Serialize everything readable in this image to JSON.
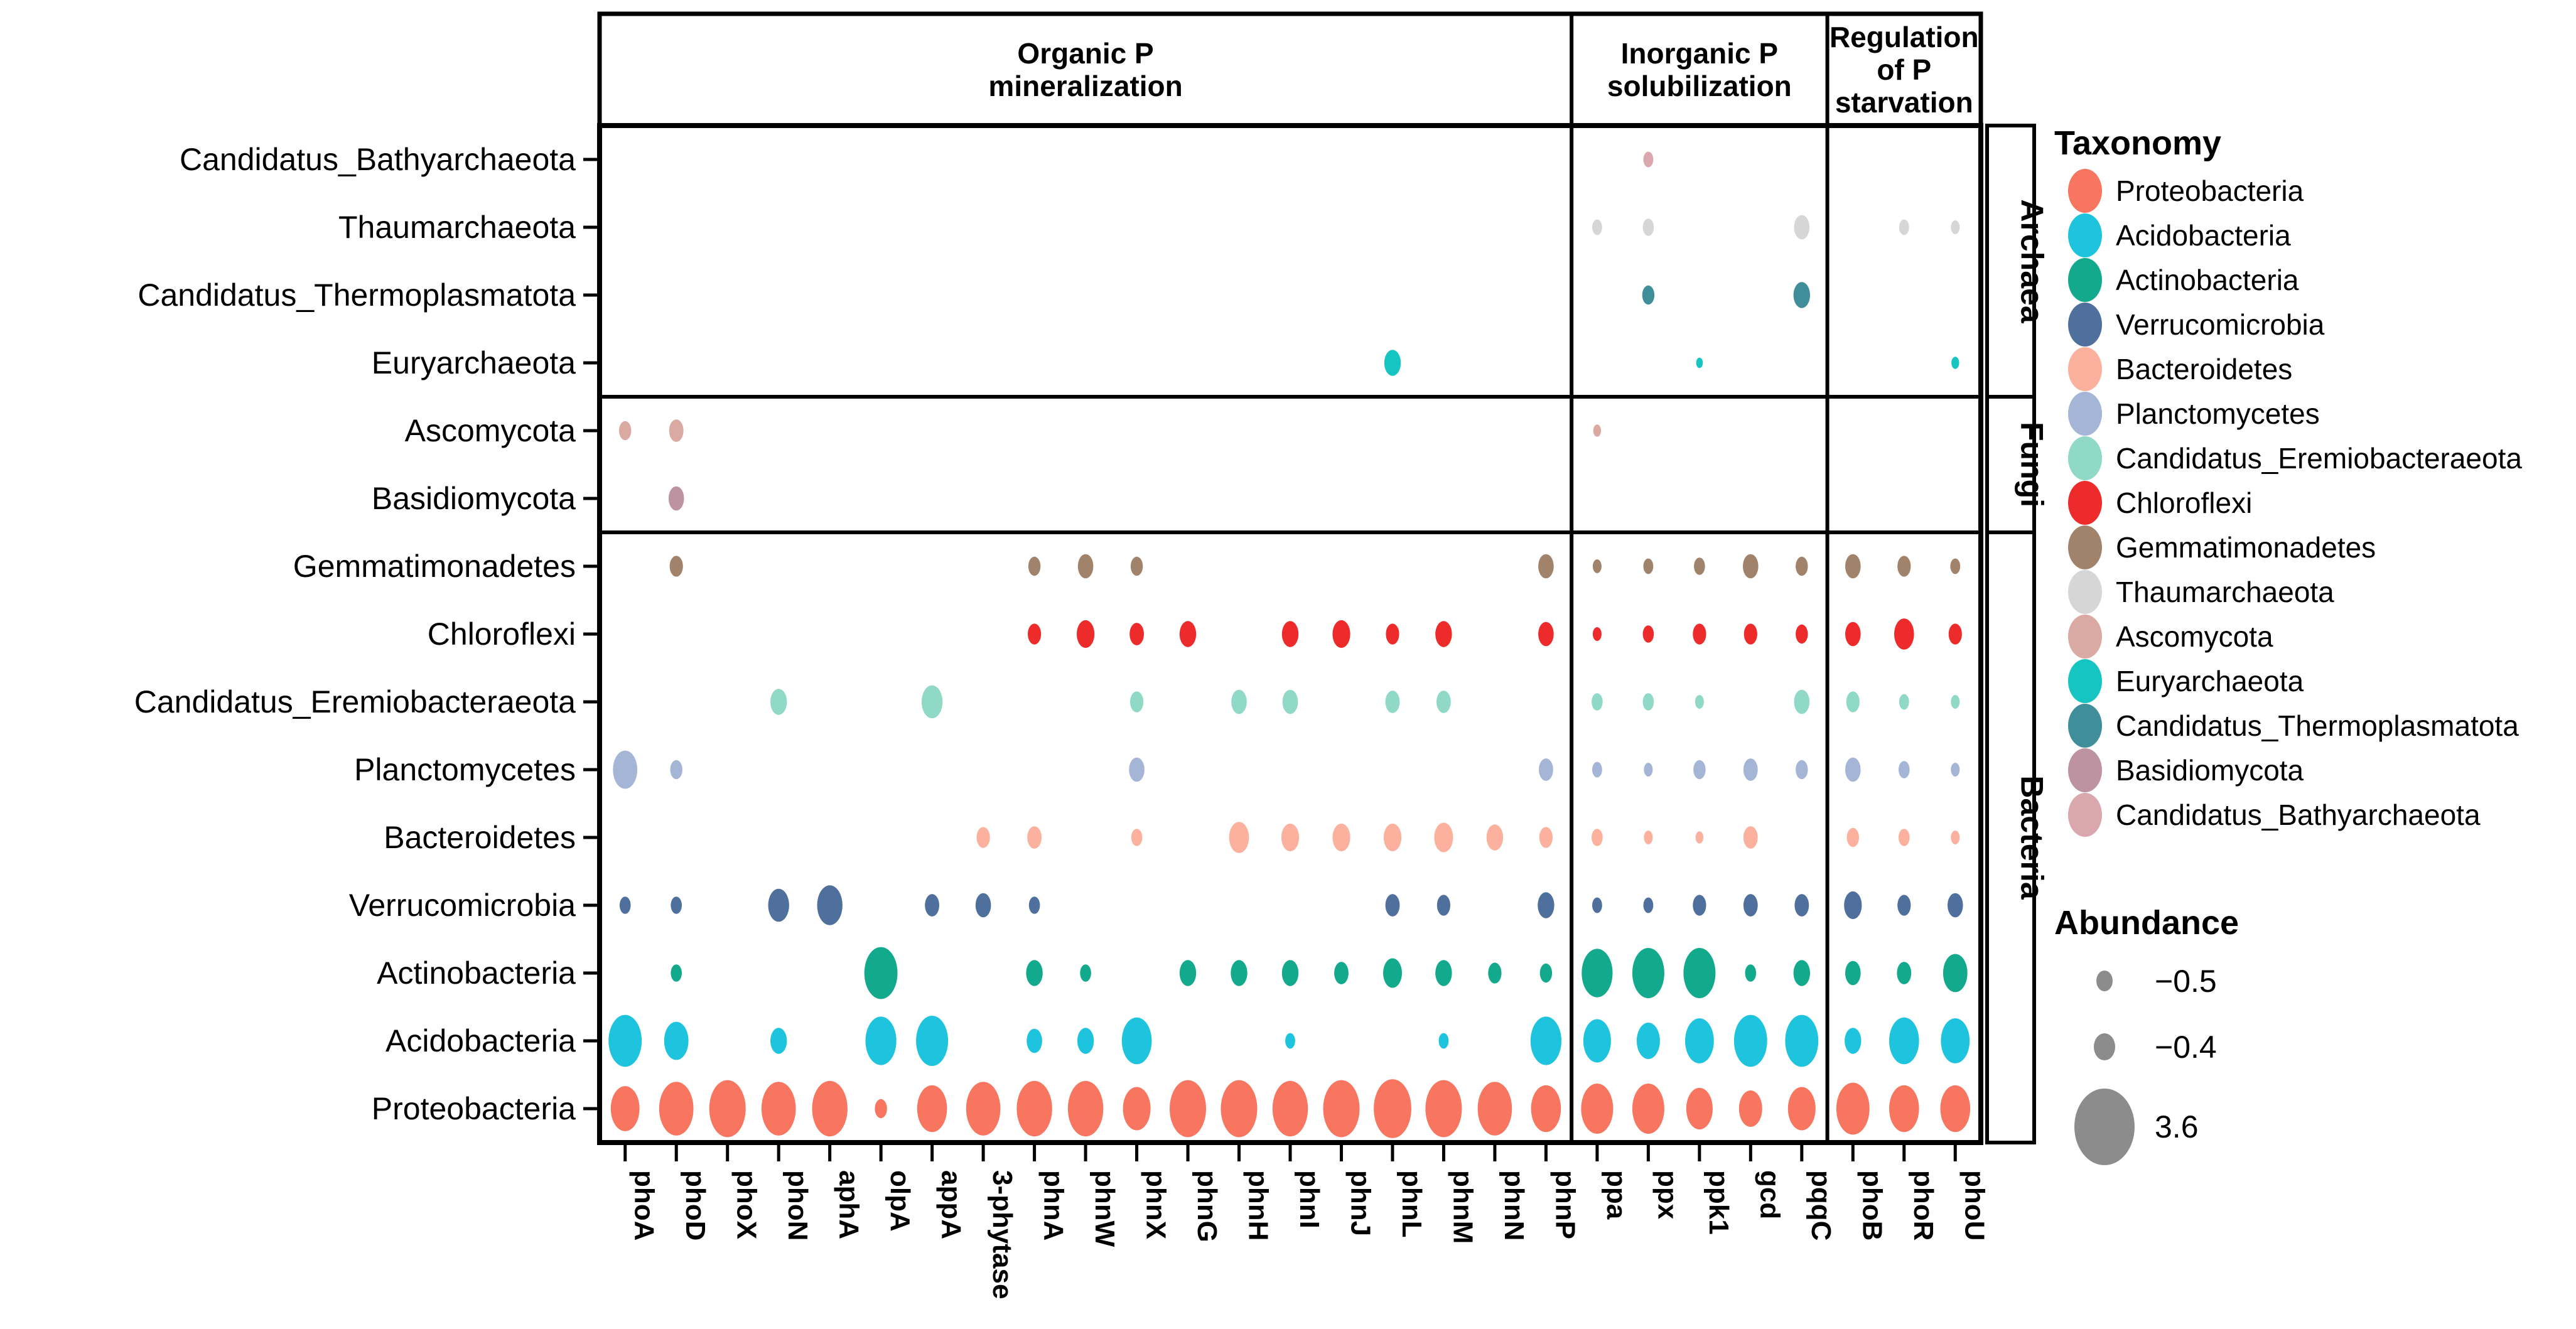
{
  "chart_data": {
    "type": "bubble",
    "title": "",
    "x_axis": {
      "gene_groups": [
        {
          "label_lines": [
            "Organic P",
            "mineralization"
          ],
          "genes": [
            "phoA",
            "phoD",
            "phoX",
            "phoN",
            "aphA",
            "olpA",
            "appA",
            "3-phytase",
            "phnA",
            "phnW",
            "phnX",
            "phnG",
            "phnH",
            "phnI",
            "phnJ",
            "phnL",
            "phnM",
            "phnN",
            "phnP"
          ]
        },
        {
          "label_lines": [
            "Inorganic P",
            "solubilization"
          ],
          "genes": [
            "ppa",
            "ppx",
            "ppk1",
            "gcd",
            "pqqC"
          ]
        },
        {
          "label_lines": [
            "Regulation",
            "of P",
            "starvation"
          ],
          "genes": [
            "phoB",
            "phoR",
            "phoU"
          ]
        }
      ]
    },
    "y_axis": {
      "row_groups": [
        {
          "label": "Archaea",
          "count": 4
        },
        {
          "label": "Fungi",
          "count": 2
        },
        {
          "label": "Bacteria",
          "count": 9
        }
      ]
    },
    "rows": [
      {
        "name": "Candidatus_Bathyarchaeota",
        "group": "Archaea",
        "color": "#D9A7AC",
        "dots": {
          "ppx": 9
        }
      },
      {
        "name": "Thaumarchaeota",
        "group": "Archaea",
        "color": "#D6D6D6",
        "dots": {
          "ppa": 9,
          "ppx": 10,
          "pqqC": 14,
          "phoR": 9,
          "phoU": 8
        }
      },
      {
        "name": "Candidatus_Thermoplasmatota",
        "group": "Archaea",
        "color": "#3F8E99",
        "dots": {
          "ppx": 11,
          "pqqC": 15
        }
      },
      {
        "name": "Euryarchaeota",
        "group": "Archaea",
        "color": "#16C5C2",
        "dots": {
          "phnL": 15,
          "ppk1": 6,
          "phoU": 7
        }
      },
      {
        "name": "Ascomycota",
        "group": "Fungi",
        "color": "#D9A9A2",
        "dots": {
          "phoA": 11,
          "phoD": 13,
          "ppa": 7
        }
      },
      {
        "name": "Basidiomycota",
        "group": "Fungi",
        "color": "#BD93A2",
        "dots": {
          "phoD": 14
        }
      },
      {
        "name": "Gemmatimonadetes",
        "group": "Bacteria",
        "color": "#A1836B",
        "dots": {
          "phoD": 12,
          "phnA": 11,
          "phnW": 14,
          "phnX": 11,
          "phnP": 14,
          "ppa": 8,
          "ppx": 9,
          "ppk1": 10,
          "gcd": 14,
          "pqqC": 11,
          "phoB": 14,
          "phoR": 12,
          "phoU": 9
        }
      },
      {
        "name": "Chloroflexi",
        "group": "Bacteria",
        "color": "#EE2B2B",
        "dots": {
          "phnA": 12,
          "phnW": 16,
          "phnX": 13,
          "phnG": 15,
          "phnI": 15,
          "phnJ": 16,
          "phnL": 12,
          "phnM": 15,
          "phnP": 14,
          "ppa": 8,
          "ppx": 10,
          "ppk1": 12,
          "gcd": 12,
          "pqqC": 11,
          "phoB": 14,
          "phoR": 18,
          "phoU": 12
        }
      },
      {
        "name": "Candidatus_Eremiobacteraeota",
        "group": "Bacteria",
        "color": "#90D9C6",
        "dots": {
          "phoN": 15,
          "appA": 19,
          "phnX": 12,
          "phnH": 14,
          "phnI": 14,
          "phnL": 13,
          "phnM": 13,
          "ppa": 10,
          "ppx": 10,
          "ppk1": 8,
          "pqqC": 14,
          "phoB": 12,
          "phoR": 9,
          "phoU": 8
        }
      },
      {
        "name": "Planctomycetes",
        "group": "Bacteria",
        "color": "#A4B5D6",
        "dots": {
          "phoA": 22,
          "phoD": 11,
          "phnX": 14,
          "phnP": 13,
          "ppa": 9,
          "ppx": 8,
          "ppk1": 11,
          "gcd": 13,
          "pqqC": 11,
          "phoB": 14,
          "phoR": 10,
          "phoU": 8
        }
      },
      {
        "name": "Bacteroidetes",
        "group": "Bacteria",
        "color": "#FBB19D",
        "dots": {
          "3-phytase": 12,
          "phnA": 13,
          "phnX": 10,
          "phnH": 18,
          "phnI": 16,
          "phnJ": 16,
          "phnL": 16,
          "phnM": 17,
          "phnN": 15,
          "phnP": 12,
          "ppa": 10,
          "ppx": 8,
          "ppk1": 7,
          "gcd": 13,
          "phoB": 11,
          "phoR": 10,
          "phoU": 8
        }
      },
      {
        "name": "Verrucomicrobia",
        "group": "Bacteria",
        "color": "#4F709C",
        "dots": {
          "phoA": 10,
          "phoD": 10,
          "phoN": 19,
          "aphA": 23,
          "appA": 13,
          "3-phytase": 14,
          "phnA": 10,
          "phnL": 13,
          "phnM": 12,
          "phnP": 15,
          "ppa": 9,
          "ppx": 9,
          "ppk1": 12,
          "gcd": 13,
          "pqqC": 13,
          "phoB": 16,
          "phoR": 12,
          "phoU": 14
        }
      },
      {
        "name": "Actinobacteria",
        "group": "Bacteria",
        "color": "#13A98C",
        "dots": {
          "phoD": 10,
          "olpA": 30,
          "phnA": 15,
          "phnW": 10,
          "phnG": 15,
          "phnH": 15,
          "phnI": 15,
          "phnJ": 13,
          "phnL": 17,
          "phnM": 15,
          "phnN": 12,
          "phnP": 11,
          "ppa": 28,
          "ppx": 29,
          "ppk1": 29,
          "gcd": 10,
          "pqqC": 15,
          "phoB": 14,
          "phoR": 13,
          "phoU": 22
        }
      },
      {
        "name": "Acidobacteria",
        "group": "Bacteria",
        "color": "#1EC4DD",
        "dots": {
          "phoA": 30,
          "phoD": 22,
          "phoN": 15,
          "olpA": 28,
          "appA": 29,
          "phnA": 14,
          "phnW": 15,
          "phnX": 27,
          "phnI": 9,
          "phnM": 9,
          "phnP": 28,
          "ppa": 25,
          "ppx": 21,
          "ppk1": 26,
          "gcd": 30,
          "pqqC": 30,
          "phoB": 15,
          "phoR": 27,
          "phoU": 26
        }
      },
      {
        "name": "Proteobacteria",
        "group": "Bacteria",
        "color": "#F8765F",
        "dots": {
          "phoA": 26,
          "phoD": 31,
          "phoX": 33,
          "phoN": 31,
          "aphA": 32,
          "olpA": 11,
          "appA": 27,
          "3-phytase": 31,
          "phnA": 32,
          "phnW": 32,
          "phnX": 25,
          "phnG": 33,
          "phnH": 33,
          "phnI": 32,
          "phnJ": 33,
          "phnL": 34,
          "phnM": 33,
          "phnN": 31,
          "phnP": 27,
          "ppa": 29,
          "ppx": 29,
          "ppk1": 24,
          "gcd": 21,
          "pqqC": 25,
          "phoB": 30,
          "phoR": 27,
          "phoU": 27
        }
      }
    ],
    "taxonomy_legend": {
      "title": "Taxonomy",
      "order": [
        "Proteobacteria",
        "Acidobacteria",
        "Actinobacteria",
        "Verrucomicrobia",
        "Bacteroidetes",
        "Planctomycetes",
        "Candidatus_Eremiobacteraeota",
        "Chloroflexi",
        "Gemmatimonadetes",
        "Thaumarchaeota",
        "Ascomycota",
        "Euryarchaeota",
        "Candidatus_Thermoplasmatota",
        "Basidiomycota",
        "Candidatus_Bathyarchaeota"
      ]
    },
    "size_legend": {
      "title": "Abundance",
      "color": "#8C8C8C",
      "entries": [
        {
          "label": "−0.5",
          "size": 13
        },
        {
          "label": "−0.4",
          "size": 17
        },
        {
          "label": "3.6",
          "size": 48
        }
      ]
    },
    "layout_hints": {
      "legend_position": "right",
      "grid": "panel-borders-only",
      "background": "#FFFFFF"
    }
  }
}
